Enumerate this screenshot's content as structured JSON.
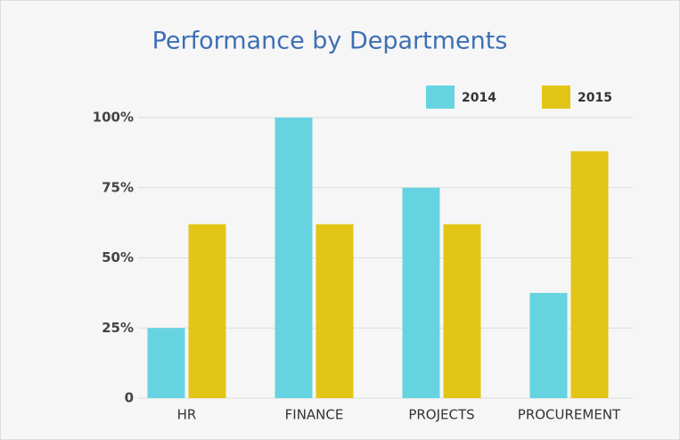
{
  "chart_data": {
    "type": "bar",
    "title": "Performance by Departments",
    "categories": [
      "HR",
      "FINANCE",
      "PROJECTS",
      "PROCUREMENT"
    ],
    "series": [
      {
        "name": "2014",
        "color": "#65d4e0",
        "values": [
          25,
          100,
          75,
          37.5
        ]
      },
      {
        "name": "2015",
        "color": "#e2c517",
        "values": [
          62,
          62,
          62,
          88
        ]
      }
    ],
    "ylim": [
      0,
      100
    ],
    "yticks": [
      0,
      {
        "value": 25,
        "label": "25%"
      },
      {
        "value": 50,
        "label": "50%"
      },
      {
        "value": 75,
        "label": "75%"
      },
      {
        "value": 100,
        "label": "100%"
      }
    ],
    "grid": true,
    "legend": "top-right"
  }
}
